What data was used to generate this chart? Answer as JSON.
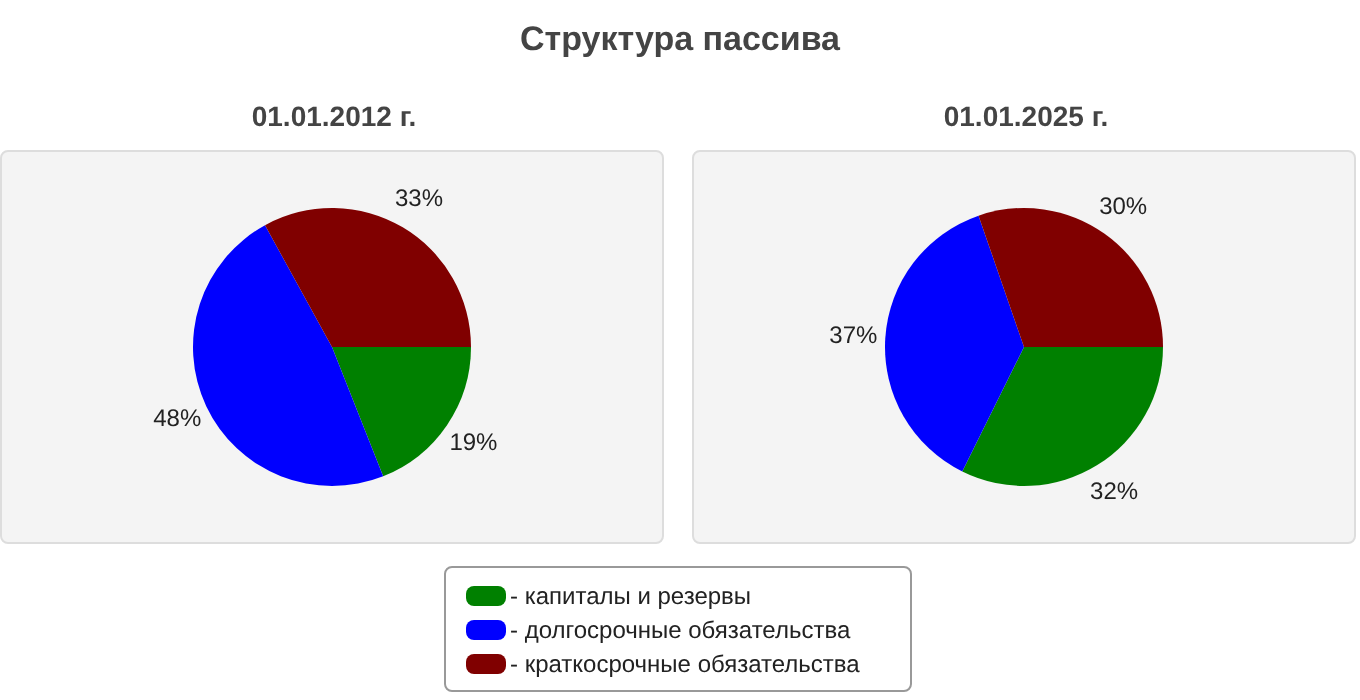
{
  "chart_data": [
    {
      "type": "pie",
      "title": "Структура пассива",
      "subtitle": "01.01.2012 г.",
      "categories": [
        "- капиталы и резервы",
        "- долгосрочные обязательства",
        "- краткосрочные обязательства"
      ],
      "values": [
        19,
        48,
        33
      ],
      "value_labels": [
        "19%",
        "48%",
        "33%"
      ],
      "colors": [
        "#008000",
        "#0000ff",
        "#800000"
      ],
      "legend": "bottom"
    },
    {
      "type": "pie",
      "subtitle": "01.01.2025 г.",
      "categories": [
        null,
        null,
        null
      ],
      "values": [
        32,
        37,
        30
      ],
      "value_labels": [
        "32%",
        "37%",
        "30%"
      ],
      "colors": [
        "#008000",
        "#0000ff",
        "#800000"
      ]
    }
  ]
}
